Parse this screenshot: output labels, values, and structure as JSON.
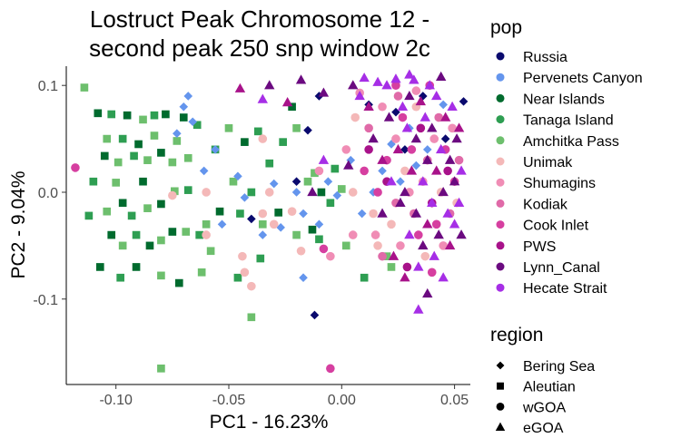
{
  "chart_data": {
    "type": "scatter",
    "title_line1": "Lostruct Peak Chromosome 12 -",
    "title_line2": "second peak 250 snp window 2c",
    "xlabel": "PC1 - 16.23%",
    "ylabel": "PC2 - 9.04%",
    "xlim": [
      -0.122,
      0.057
    ],
    "ylim": [
      -0.18,
      0.118
    ],
    "x_ticks": [
      -0.1,
      -0.05,
      0.0,
      0.05
    ],
    "x_tick_labels": [
      "-0.10",
      "-0.05",
      "0.00",
      "0.05"
    ],
    "y_ticks": [
      -0.1,
      0.0,
      0.1
    ],
    "y_tick_labels": [
      "-0.1",
      "0.0",
      "0.1"
    ],
    "grid": false,
    "legend_pop_title": "pop",
    "legend_region_title": "region",
    "populations": [
      {
        "name": "Russia",
        "color": "#0a0a6e"
      },
      {
        "name": "Pervenets Canyon",
        "color": "#6495ed"
      },
      {
        "name": "Near Islands",
        "color": "#006b2e"
      },
      {
        "name": "Tanaga Island",
        "color": "#2e9e52"
      },
      {
        "name": "Amchitka Pass",
        "color": "#6dbf6d"
      },
      {
        "name": "Unimak",
        "color": "#f4b8b8"
      },
      {
        "name": "Shumagins",
        "color": "#f08db5"
      },
      {
        "name": "Kodiak",
        "color": "#e06aa8"
      },
      {
        "name": "Cook Inlet",
        "color": "#d63fa0"
      },
      {
        "name": "PWS",
        "color": "#a8128a"
      },
      {
        "name": "Lynn_Canal",
        "color": "#6b0a80"
      },
      {
        "name": "Hecate Strait",
        "color": "#a62ee6"
      }
    ],
    "regions": [
      {
        "name": "Bering Sea",
        "shape": "diamond"
      },
      {
        "name": "Aleutian",
        "shape": "square"
      },
      {
        "name": "wGOA",
        "shape": "circle"
      },
      {
        "name": "eGOA",
        "shape": "triangle"
      }
    ],
    "points": [
      [
        -0.114,
        0.098,
        4,
        1
      ],
      [
        -0.108,
        0.074,
        2,
        1
      ],
      [
        -0.102,
        0.073,
        3,
        1
      ],
      [
        -0.104,
        0.05,
        4,
        1
      ],
      [
        -0.097,
        0.05,
        3,
        1
      ],
      [
        -0.095,
        0.072,
        2,
        1
      ],
      [
        -0.088,
        0.068,
        4,
        1
      ],
      [
        -0.083,
        0.072,
        3,
        1
      ],
      [
        -0.078,
        0.073,
        2,
        1
      ],
      [
        -0.073,
        0.048,
        4,
        1
      ],
      [
        -0.07,
        0.07,
        2,
        1
      ],
      [
        -0.064,
        0.063,
        3,
        1
      ],
      [
        -0.068,
        0.032,
        4,
        1
      ],
      [
        -0.083,
        0.053,
        4,
        1
      ],
      [
        -0.09,
        0.045,
        2,
        1
      ],
      [
        -0.105,
        0.034,
        2,
        1
      ],
      [
        -0.099,
        0.028,
        4,
        1
      ],
      [
        -0.092,
        0.034,
        3,
        1
      ],
      [
        -0.086,
        0.03,
        4,
        1
      ],
      [
        -0.08,
        0.037,
        2,
        1
      ],
      [
        -0.075,
        0.028,
        4,
        1
      ],
      [
        -0.11,
        0.01,
        3,
        1
      ],
      [
        -0.1,
        0.009,
        4,
        1
      ],
      [
        -0.097,
        -0.01,
        2,
        1
      ],
      [
        -0.104,
        -0.018,
        4,
        1
      ],
      [
        -0.093,
        -0.022,
        3,
        1
      ],
      [
        -0.086,
        -0.015,
        4,
        1
      ],
      [
        -0.08,
        -0.011,
        2,
        1
      ],
      [
        -0.074,
        0.001,
        4,
        1
      ],
      [
        -0.068,
        0.002,
        3,
        1
      ],
      [
        -0.088,
        0.01,
        2,
        1
      ],
      [
        -0.112,
        -0.022,
        3,
        1
      ],
      [
        -0.102,
        -0.04,
        2,
        1
      ],
      [
        -0.097,
        -0.05,
        4,
        1
      ],
      [
        -0.091,
        -0.04,
        3,
        1
      ],
      [
        -0.085,
        -0.05,
        2,
        1
      ],
      [
        -0.08,
        -0.045,
        4,
        1
      ],
      [
        -0.075,
        -0.037,
        2,
        1
      ],
      [
        -0.069,
        -0.037,
        4,
        1
      ],
      [
        -0.063,
        -0.04,
        3,
        1
      ],
      [
        -0.058,
        -0.055,
        4,
        1
      ],
      [
        -0.107,
        -0.07,
        2,
        1
      ],
      [
        -0.098,
        -0.08,
        3,
        1
      ],
      [
        -0.091,
        -0.07,
        2,
        1
      ],
      [
        -0.08,
        -0.078,
        4,
        1
      ],
      [
        -0.072,
        -0.085,
        2,
        1
      ],
      [
        -0.062,
        -0.075,
        4,
        1
      ],
      [
        -0.046,
        -0.08,
        3,
        1
      ],
      [
        -0.06,
        -0.03,
        4,
        1
      ],
      [
        -0.054,
        -0.018,
        2,
        1
      ],
      [
        -0.045,
        -0.02,
        3,
        1
      ],
      [
        -0.035,
        -0.03,
        4,
        1
      ],
      [
        -0.04,
        0.0,
        3,
        1
      ],
      [
        -0.048,
        0.01,
        4,
        1
      ],
      [
        -0.056,
        0.04,
        3,
        1
      ],
      [
        -0.05,
        0.06,
        4,
        1
      ],
      [
        -0.043,
        0.047,
        2,
        1
      ],
      [
        -0.037,
        0.057,
        3,
        1
      ],
      [
        -0.032,
        0.027,
        3,
        1
      ],
      [
        -0.026,
        0.047,
        3,
        1
      ],
      [
        -0.02,
        0.06,
        4,
        1
      ],
      [
        -0.022,
        0.08,
        2,
        1
      ],
      [
        -0.015,
        0.01,
        4,
        1
      ],
      [
        -0.009,
        0.0,
        2,
        1
      ],
      [
        -0.003,
        0.022,
        3,
        1
      ],
      [
        -0.028,
        -0.019,
        2,
        1
      ],
      [
        -0.02,
        -0.04,
        4,
        1
      ],
      [
        -0.013,
        -0.035,
        2,
        1
      ],
      [
        -0.005,
        -0.01,
        3,
        1
      ],
      [
        0.002,
        -0.05,
        4,
        1
      ],
      [
        -0.036,
        -0.062,
        3,
        1
      ],
      [
        -0.04,
        -0.117,
        4,
        1
      ],
      [
        -0.08,
        -0.165,
        4,
        1
      ],
      [
        -0.01,
        -0.044,
        3,
        1
      ],
      [
        0.0,
        0.003,
        4,
        1
      ],
      [
        -0.012,
        0.018,
        4,
        1
      ],
      [
        0.02,
        -0.06,
        4,
        1
      ],
      [
        0.022,
        -0.07,
        4,
        1
      ],
      [
        0.01,
        -0.08,
        3,
        1
      ],
      [
        -0.07,
        0.08,
        1,
        0
      ],
      [
        -0.068,
        0.09,
        1,
        0
      ],
      [
        -0.066,
        0.066,
        1,
        0
      ],
      [
        -0.073,
        0.055,
        1,
        0
      ],
      [
        -0.056,
        0.04,
        1,
        0
      ],
      [
        -0.061,
        0.02,
        1,
        0
      ],
      [
        -0.053,
        -0.03,
        1,
        0
      ],
      [
        -0.046,
        0.015,
        1,
        0
      ],
      [
        -0.043,
        -0.005,
        1,
        0
      ],
      [
        -0.035,
        -0.04,
        1,
        0
      ],
      [
        -0.03,
        0.008,
        1,
        0
      ],
      [
        -0.027,
        -0.033,
        1,
        0
      ],
      [
        -0.02,
        0.0,
        1,
        0
      ],
      [
        -0.017,
        -0.02,
        1,
        0
      ],
      [
        -0.01,
        -0.03,
        1,
        0
      ],
      [
        -0.006,
        0.01,
        1,
        0
      ],
      [
        -0.002,
        -0.003,
        1,
        0
      ],
      [
        0.004,
        0.03,
        1,
        0
      ],
      [
        0.009,
        -0.02,
        1,
        0
      ],
      [
        0.014,
        0.0,
        1,
        0
      ],
      [
        0.018,
        0.02,
        1,
        0
      ],
      [
        0.022,
        0.045,
        1,
        0
      ],
      [
        0.026,
        0.01,
        1,
        0
      ],
      [
        0.03,
        0.06,
        1,
        0
      ],
      [
        0.033,
        0.025,
        1,
        0
      ],
      [
        0.038,
        0.04,
        1,
        0
      ],
      [
        0.045,
        0.082,
        1,
        0
      ],
      [
        -0.017,
        -0.08,
        1,
        0
      ],
      [
        -0.02,
        0.01,
        0,
        0
      ],
      [
        -0.04,
        -0.025,
        0,
        0
      ],
      [
        -0.012,
        -0.115,
        0,
        0
      ],
      [
        -0.015,
        0.058,
        0,
        0
      ],
      [
        -0.01,
        0.09,
        0,
        0
      ],
      [
        0.012,
        0.082,
        0,
        0
      ],
      [
        0.046,
        0.05,
        0,
        0
      ],
      [
        0.054,
        0.085,
        0,
        0
      ],
      [
        0.028,
        0.04,
        0,
        0
      ],
      [
        0.024,
        0.075,
        0,
        0
      ],
      [
        0.036,
        0.09,
        0,
        0
      ],
      [
        -0.118,
        0.023,
        8,
        2
      ],
      [
        -0.075,
        -0.003,
        5,
        2
      ],
      [
        -0.06,
        0.0,
        5,
        2
      ],
      [
        -0.06,
        -0.04,
        5,
        2
      ],
      [
        -0.035,
        -0.02,
        5,
        2
      ],
      [
        -0.032,
        0.0,
        5,
        2
      ],
      [
        -0.03,
        -0.03,
        5,
        2
      ],
      [
        -0.035,
        0.05,
        5,
        2
      ],
      [
        -0.044,
        -0.06,
        5,
        2
      ],
      [
        -0.043,
        -0.075,
        5,
        2
      ],
      [
        -0.04,
        -0.088,
        5,
        2
      ],
      [
        -0.022,
        -0.018,
        5,
        2
      ],
      [
        -0.018,
        -0.055,
        5,
        2
      ],
      [
        -0.01,
        0.02,
        6,
        2
      ],
      [
        -0.008,
        -0.053,
        8,
        2
      ],
      [
        -0.005,
        -0.06,
        6,
        2
      ],
      [
        -0.005,
        -0.165,
        8,
        2
      ],
      [
        0.002,
        0.04,
        6,
        2
      ],
      [
        0.005,
        0.0,
        5,
        2
      ],
      [
        0.005,
        -0.04,
        6,
        2
      ],
      [
        0.006,
        0.07,
        5,
        2
      ],
      [
        0.008,
        0.093,
        6,
        2
      ],
      [
        0.01,
        0.02,
        8,
        2
      ],
      [
        0.012,
        0.06,
        7,
        2
      ],
      [
        0.012,
        0.04,
        9,
        2
      ],
      [
        0.014,
        -0.02,
        5,
        2
      ],
      [
        0.015,
        -0.04,
        6,
        2
      ],
      [
        0.016,
        0.0,
        8,
        2
      ],
      [
        0.018,
        0.08,
        6,
        2
      ],
      [
        0.018,
        -0.06,
        7,
        2
      ],
      [
        0.02,
        0.03,
        8,
        2
      ],
      [
        0.02,
        0.01,
        9,
        2
      ],
      [
        0.022,
        -0.03,
        5,
        2
      ],
      [
        0.024,
        0.05,
        6,
        2
      ],
      [
        0.024,
        -0.01,
        7,
        2
      ],
      [
        0.025,
        0.09,
        7,
        2
      ],
      [
        0.026,
        -0.05,
        6,
        2
      ],
      [
        0.027,
        0.07,
        8,
        2
      ],
      [
        0.028,
        0.02,
        5,
        2
      ],
      [
        0.029,
        -0.07,
        9,
        2
      ],
      [
        0.03,
        0.0,
        6,
        2
      ],
      [
        0.031,
        0.04,
        8,
        2
      ],
      [
        0.032,
        -0.02,
        7,
        2
      ],
      [
        0.033,
        0.08,
        5,
        2
      ],
      [
        0.034,
        -0.04,
        8,
        2
      ],
      [
        0.035,
        0.06,
        9,
        2
      ],
      [
        0.036,
        0.01,
        6,
        2
      ],
      [
        0.037,
        -0.06,
        5,
        2
      ],
      [
        0.038,
        0.03,
        7,
        2
      ],
      [
        0.039,
        0.1,
        8,
        2
      ],
      [
        0.04,
        -0.01,
        9,
        2
      ],
      [
        0.041,
        0.05,
        6,
        2
      ],
      [
        0.042,
        -0.03,
        8,
        2
      ],
      [
        0.043,
        0.07,
        7,
        2
      ],
      [
        0.044,
        0.0,
        5,
        2
      ],
      [
        0.045,
        -0.05,
        6,
        2
      ],
      [
        0.046,
        0.04,
        8,
        2
      ],
      [
        0.047,
        0.02,
        9,
        2
      ],
      [
        0.048,
        -0.02,
        7,
        2
      ],
      [
        0.049,
        0.06,
        6,
        2
      ],
      [
        0.05,
        0.01,
        8,
        2
      ],
      [
        0.051,
        -0.01,
        5,
        2
      ],
      [
        0.052,
        0.03,
        7,
        2
      ],
      [
        0.04,
        -0.075,
        8,
        2
      ],
      [
        0.033,
        0.095,
        6,
        2
      ],
      [
        0.024,
        0.1,
        8,
        2
      ],
      [
        0.016,
        -0.05,
        5,
        2
      ],
      [
        -0.018,
        0.105,
        10,
        3
      ],
      [
        -0.008,
        0.093,
        10,
        3
      ],
      [
        -0.024,
        0.084,
        9,
        3
      ],
      [
        -0.032,
        0.1,
        10,
        3
      ],
      [
        -0.035,
        0.087,
        11,
        3
      ],
      [
        -0.045,
        0.097,
        9,
        3
      ],
      [
        -0.013,
        0.0,
        10,
        3
      ],
      [
        -0.008,
        0.03,
        11,
        3
      ],
      [
        0.003,
        0.025,
        10,
        3
      ],
      [
        0.005,
        0.1,
        10,
        3
      ],
      [
        0.008,
        0.09,
        11,
        3
      ],
      [
        0.01,
        0.107,
        11,
        3
      ],
      [
        0.012,
        0.08,
        9,
        3
      ],
      [
        0.014,
        0.05,
        10,
        3
      ],
      [
        0.016,
        0.103,
        11,
        3
      ],
      [
        0.018,
        0.03,
        9,
        3
      ],
      [
        0.018,
        -0.02,
        10,
        3
      ],
      [
        0.02,
        0.1,
        11,
        3
      ],
      [
        0.021,
        0.07,
        10,
        3
      ],
      [
        0.022,
        0.01,
        11,
        3
      ],
      [
        0.023,
        -0.06,
        9,
        3
      ],
      [
        0.024,
        0.106,
        11,
        3
      ],
      [
        0.025,
        0.04,
        9,
        3
      ],
      [
        0.026,
        -0.01,
        10,
        3
      ],
      [
        0.027,
        0.08,
        11,
        3
      ],
      [
        0.028,
        0.0,
        10,
        3
      ],
      [
        0.028,
        -0.08,
        9,
        3
      ],
      [
        0.029,
        0.06,
        11,
        3
      ],
      [
        0.03,
        0.09,
        10,
        3
      ],
      [
        0.03,
        -0.04,
        11,
        3
      ],
      [
        0.031,
        0.02,
        9,
        3
      ],
      [
        0.032,
        0.105,
        11,
        3
      ],
      [
        0.033,
        -0.02,
        10,
        3
      ],
      [
        0.033,
        0.05,
        10,
        3
      ],
      [
        0.034,
        -0.07,
        11,
        3
      ],
      [
        0.035,
        0.085,
        9,
        3
      ],
      [
        0.036,
        0.01,
        11,
        3
      ],
      [
        0.036,
        -0.05,
        10,
        3
      ],
      [
        0.037,
        0.07,
        11,
        3
      ],
      [
        0.038,
        0.03,
        10,
        3
      ],
      [
        0.038,
        -0.03,
        9,
        3
      ],
      [
        0.039,
        0.1,
        11,
        3
      ],
      [
        0.04,
        -0.01,
        11,
        3
      ],
      [
        0.04,
        0.06,
        10,
        3
      ],
      [
        0.041,
        -0.06,
        11,
        3
      ],
      [
        0.042,
        0.02,
        9,
        3
      ],
      [
        0.042,
        0.09,
        11,
        3
      ],
      [
        0.043,
        -0.04,
        10,
        3
      ],
      [
        0.044,
        0.04,
        11,
        3
      ],
      [
        0.045,
        0.0,
        10,
        3
      ],
      [
        0.045,
        -0.08,
        11,
        3
      ],
      [
        0.046,
        0.07,
        9,
        3
      ],
      [
        0.047,
        -0.02,
        11,
        3
      ],
      [
        0.048,
        0.03,
        10,
        3
      ],
      [
        0.048,
        -0.05,
        9,
        3
      ],
      [
        0.049,
        0.08,
        11,
        3
      ],
      [
        0.05,
        0.01,
        10,
        3
      ],
      [
        0.05,
        -0.03,
        11,
        3
      ],
      [
        0.051,
        0.05,
        10,
        3
      ],
      [
        0.052,
        -0.01,
        11,
        3
      ],
      [
        0.052,
        0.06,
        9,
        3
      ],
      [
        0.053,
        0.02,
        11,
        3
      ],
      [
        0.053,
        -0.04,
        10,
        3
      ],
      [
        0.038,
        -0.095,
        10,
        3
      ],
      [
        0.034,
        -0.11,
        11,
        3
      ],
      [
        0.044,
        0.108,
        10,
        3
      ],
      [
        0.03,
        0.11,
        11,
        3
      ]
    ]
  }
}
